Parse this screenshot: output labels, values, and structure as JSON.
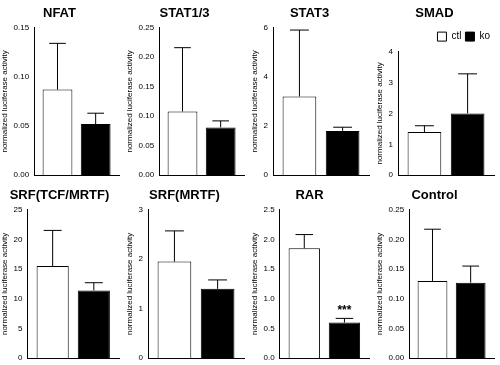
{
  "chart_data": [
    {
      "type": "bar",
      "title": "NFAT",
      "y_label": "normalized luciferase activity",
      "categories": [
        null
      ],
      "series": [
        {
          "name": "ctl",
          "color": "#ffffff",
          "values": [
            0.087
          ],
          "error": [
            0.047
          ]
        },
        {
          "name": "ko",
          "color": "#000000",
          "values": [
            0.052
          ],
          "error": [
            0.011
          ]
        }
      ],
      "ylim": [
        0,
        0.15
      ],
      "yticks": [
        {
          "value": 0,
          "label": "0.00"
        },
        {
          "value": 0.05,
          "label": "0.05"
        },
        {
          "value": 0.1,
          "label": "0.10"
        },
        {
          "value": 0.15,
          "label": "0.15"
        }
      ],
      "grid": false,
      "tick_labels": "y"
    },
    {
      "type": "bar",
      "title": "STAT1/3",
      "y_label": "normalized luciferase activity",
      "categories": [
        null
      ],
      "series": [
        {
          "name": "ctl",
          "color": "#ffffff",
          "values": [
            0.108
          ],
          "error": [
            0.108
          ]
        },
        {
          "name": "ko",
          "color": "#000000",
          "values": [
            0.081
          ],
          "error": [
            0.011
          ]
        }
      ],
      "ylim": [
        0,
        0.25
      ],
      "yticks": [
        {
          "value": 0,
          "label": "0.00"
        },
        {
          "value": 0.05,
          "label": "0.05"
        },
        {
          "value": 0.1,
          "label": "0.10"
        },
        {
          "value": 0.15,
          "label": "0.15"
        },
        {
          "value": 0.2,
          "label": "0.20"
        },
        {
          "value": 0.25,
          "label": "0.25"
        }
      ],
      "grid": false,
      "tick_labels": "y"
    },
    {
      "type": "bar",
      "title": "STAT3",
      "y_label": "normalized luciferase activity",
      "categories": [
        null
      ],
      "series": [
        {
          "name": "ctl",
          "color": "#ffffff",
          "values": [
            3.2
          ],
          "error": [
            2.7
          ]
        },
        {
          "name": "ko",
          "color": "#000000",
          "values": [
            1.8
          ],
          "error": [
            0.15
          ]
        }
      ],
      "ylim": [
        0,
        6
      ],
      "yticks": [
        0,
        2,
        4,
        6
      ],
      "grid": false,
      "tick_labels": "y"
    },
    {
      "type": "bar",
      "title": "SMAD",
      "y_label": "normalized luciferase activity",
      "categories": [
        null
      ],
      "series": [
        {
          "name": "ctl",
          "color": "#ffffff",
          "values": [
            1.4
          ],
          "error": [
            0.2
          ]
        },
        {
          "name": "ko",
          "color": "#000000",
          "values": [
            2.0
          ],
          "error": [
            1.28
          ]
        }
      ],
      "ylim": [
        0,
        4
      ],
      "yticks": [
        0,
        1,
        2,
        3,
        4
      ],
      "grid": false,
      "tick_labels": "y",
      "legend": "upper right"
    },
    {
      "type": "bar",
      "title": "SRF(TCF/MRTF)",
      "y_label": "normalized luciferase activity",
      "categories": [
        null
      ],
      "series": [
        {
          "name": "ctl",
          "color": "#ffffff",
          "values": [
            15.5
          ],
          "error": [
            6
          ]
        },
        {
          "name": "ko",
          "color": "#000000",
          "values": [
            11.4
          ],
          "error": [
            1.3
          ]
        }
      ],
      "ylim": [
        0,
        25
      ],
      "yticks": [
        0,
        5,
        10,
        15,
        20,
        25
      ],
      "grid": false,
      "tick_labels": "y"
    },
    {
      "type": "bar",
      "title": "SRF(MRTF)",
      "y_label": "normalized luciferase activity",
      "categories": [
        null
      ],
      "series": [
        {
          "name": "ctl",
          "color": "#ffffff",
          "values": [
            1.95
          ],
          "error": [
            0.62
          ]
        },
        {
          "name": "ko",
          "color": "#000000",
          "values": [
            1.4
          ],
          "error": [
            0.18
          ]
        }
      ],
      "ylim": [
        0,
        3
      ],
      "yticks": [
        0,
        1,
        2,
        3
      ],
      "grid": false,
      "tick_labels": "y"
    },
    {
      "type": "bar",
      "title": "RAR",
      "y_label": "normalized luciferase activity",
      "categories": [
        null
      ],
      "series": [
        {
          "name": "ctl",
          "color": "#ffffff",
          "values": [
            1.85
          ],
          "error": [
            0.23
          ]
        },
        {
          "name": "ko",
          "color": "#000000",
          "values": [
            0.6
          ],
          "error": [
            0.07
          ],
          "annotation": "***"
        }
      ],
      "ylim": [
        0,
        2.5
      ],
      "yticks": [
        {
          "value": 0,
          "label": "0.0"
        },
        {
          "value": 0.5,
          "label": "0.5"
        },
        {
          "value": 1,
          "label": "1.0"
        },
        {
          "value": 1.5,
          "label": "1.5"
        },
        {
          "value": 2,
          "label": "2.0"
        },
        {
          "value": 2.5,
          "label": "2.5"
        }
      ],
      "grid": false,
      "tick_labels": "y"
    },
    {
      "type": "bar",
      "title": "Control",
      "y_label": "normalized luciferase activity",
      "categories": [
        null
      ],
      "series": [
        {
          "name": "ctl",
          "color": "#ffffff",
          "values": [
            0.13
          ],
          "error": [
            0.087
          ]
        },
        {
          "name": "ko",
          "color": "#000000",
          "values": [
            0.127
          ],
          "error": [
            0.028
          ]
        }
      ],
      "ylim": [
        0,
        0.25
      ],
      "yticks": [
        {
          "value": 0,
          "label": "0.00"
        },
        {
          "value": 0.05,
          "label": "0.05"
        },
        {
          "value": 0.1,
          "label": "0.10"
        },
        {
          "value": 0.15,
          "label": "0.15"
        },
        {
          "value": 0.2,
          "label": "0.20"
        },
        {
          "value": 0.25,
          "label": "0.25"
        }
      ],
      "grid": false,
      "tick_labels": "y"
    }
  ]
}
